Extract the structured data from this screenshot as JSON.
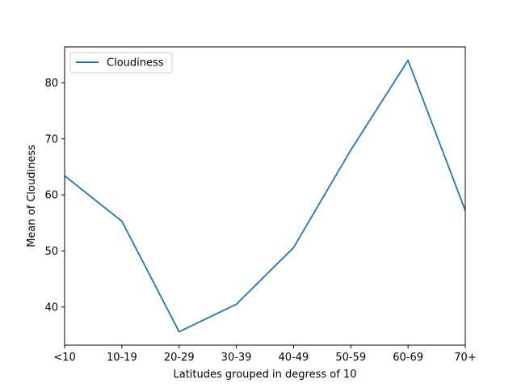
{
  "chart_data": {
    "type": "line",
    "title": "",
    "xlabel": "Latitudes grouped in degress of 10",
    "ylabel": "Mean of Cloudiness",
    "categories": [
      "<10",
      "10-19",
      "20-29",
      "30-39",
      "40-49",
      "50-59",
      "60-69",
      "70+"
    ],
    "series": [
      {
        "name": "Cloudiness",
        "color": "#1f77b4",
        "values": [
          63.4,
          55.3,
          35.6,
          40.5,
          50.6,
          68.0,
          84.0,
          57.2
        ]
      }
    ],
    "ylim": [
      33.2,
      86.4
    ],
    "yticks": [
      40,
      50,
      60,
      70,
      80
    ],
    "grid": false,
    "legend_position": "upper-left"
  }
}
